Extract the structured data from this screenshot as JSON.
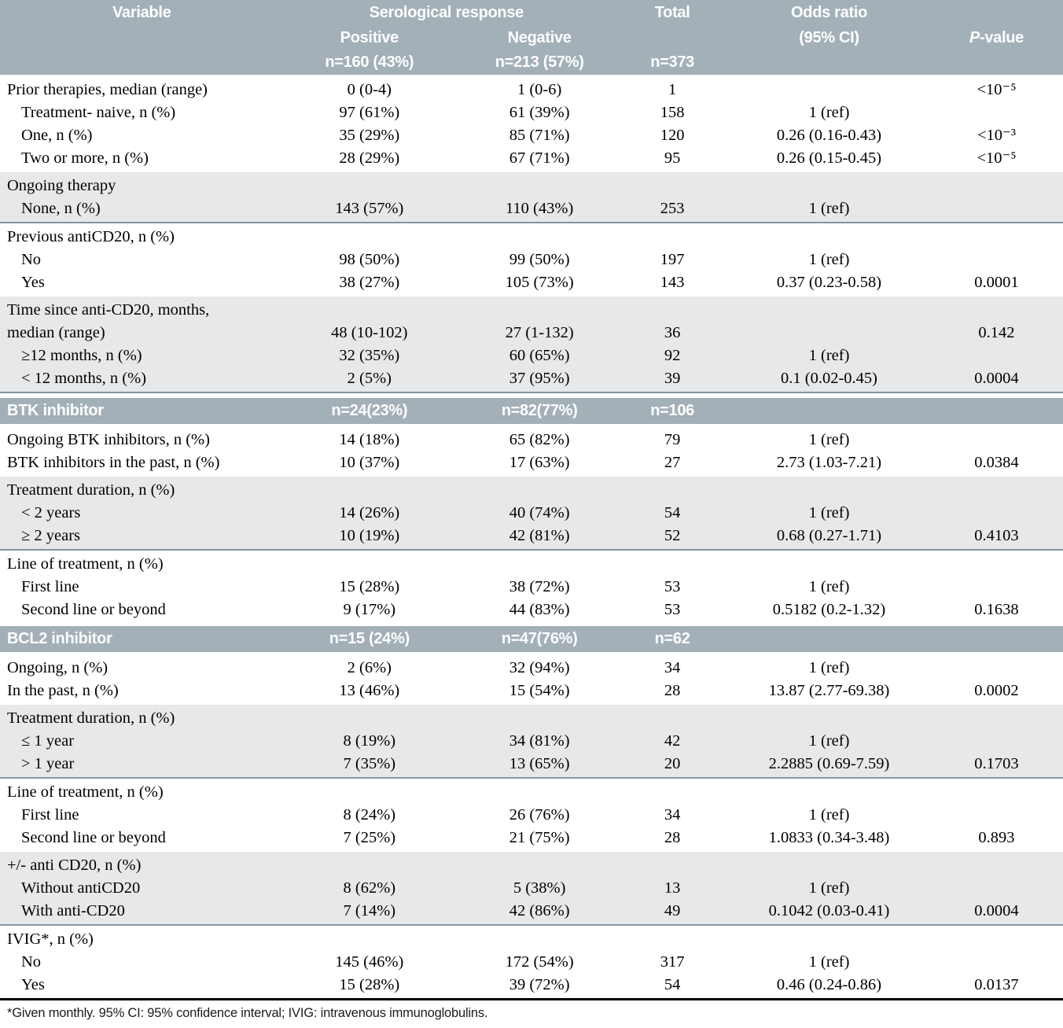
{
  "colors": {
    "header_bg": "#a3b0b8",
    "shaded_row_bg": "#e6e8ea",
    "section_divider": "#8296a2",
    "table_end_border": "#000000",
    "header_text": "#ffffff",
    "body_text": "#000000"
  },
  "header": {
    "variable": "Variable",
    "serological_response": "Serological response",
    "positive": "Positive",
    "positive_n": "n=160 (43%)",
    "negative": "Negative",
    "negative_n": "n=213 (57%)",
    "total": "Total",
    "total_n": "n=373",
    "odds_ratio_line1": "Odds ratio",
    "odds_ratio_line2": "(95% CI)",
    "p_value_italic": "P",
    "p_value_rest": "-value"
  },
  "sections": [
    {
      "type": "rows",
      "shaded": false,
      "rows": [
        {
          "label": "Prior therapies, median (range)",
          "indent": 0,
          "cells": [
            "0 (0-4)",
            "1 (0-6)",
            "1",
            "",
            "<10⁻⁵"
          ]
        },
        {
          "label": "Treatment- naive, n (%)",
          "indent": 1,
          "cells": [
            "97 (61%)",
            "61 (39%)",
            "158",
            "1 (ref)",
            ""
          ]
        },
        {
          "label": "One, n (%)",
          "indent": 1,
          "cells": [
            "35 (29%)",
            "85 (71%)",
            "120",
            "0.26 (0.16-0.43)",
            "<10⁻³"
          ]
        },
        {
          "label": "Two or more, n (%)",
          "indent": 1,
          "cells": [
            "28 (29%)",
            "67 (71%)",
            "95",
            "0.26 (0.15-0.45)",
            "<10⁻⁵"
          ]
        }
      ]
    },
    {
      "type": "rows",
      "shaded": true,
      "rows": [
        {
          "label": "Ongoing therapy",
          "indent": 0,
          "cells": [
            "",
            "",
            "",
            "",
            ""
          ]
        },
        {
          "label": "None, n (%)",
          "indent": 1,
          "cells": [
            "143 (57%)",
            "110 (43%)",
            "253",
            "1 (ref)",
            ""
          ]
        }
      ]
    },
    {
      "type": "rows",
      "shaded": false,
      "rows": [
        {
          "label": "Previous antiCD20, n (%)",
          "indent": 0,
          "cells": [
            "",
            "",
            "",
            "",
            ""
          ]
        },
        {
          "label": "No",
          "indent": 1,
          "cells": [
            "98 (50%)",
            "99 (50%)",
            "197",
            "1 (ref)",
            ""
          ]
        },
        {
          "label": "Yes",
          "indent": 1,
          "cells": [
            "38 (27%)",
            "105 (73%)",
            "143",
            "0.37 (0.23-0.58)",
            "0.0001"
          ]
        }
      ]
    },
    {
      "type": "rows",
      "shaded": true,
      "rows": [
        {
          "label": "Time since anti-CD20, months,",
          "indent": 0,
          "cells": [
            "",
            "",
            "",
            "",
            ""
          ]
        },
        {
          "label": "median (range)",
          "indent": 0,
          "cells": [
            "48 (10-102)",
            "27 (1-132)",
            "36",
            "",
            "0.142"
          ]
        },
        {
          "label": "≥12 months, n (%)",
          "indent": 1,
          "cells": [
            "32 (35%)",
            "60 (65%)",
            "92",
            "1 (ref)",
            ""
          ]
        },
        {
          "label": "< 12 months, n (%)",
          "indent": 1,
          "cells": [
            "2 (5%)",
            "37 (95%)",
            "39",
            "0.1 (0.02-0.45)",
            "0.0004"
          ]
        }
      ]
    },
    {
      "type": "band",
      "label": "BTK inhibitor",
      "cells": [
        "n=24(23%)",
        "n=82(77%)",
        "n=106"
      ]
    },
    {
      "type": "rows",
      "shaded": false,
      "rows": [
        {
          "label": "Ongoing BTK inhibitors, n (%)",
          "indent": 0,
          "cells": [
            "14 (18%)",
            "65 (82%)",
            "79",
            "1 (ref)",
            ""
          ]
        },
        {
          "label": "BTK inhibitors in the past, n (%)",
          "indent": 0,
          "cells": [
            "10 (37%)",
            "17 (63%)",
            "27",
            "2.73 (1.03-7.21)",
            "0.0384"
          ]
        }
      ]
    },
    {
      "type": "rows",
      "shaded": true,
      "rows": [
        {
          "label": "Treatment duration, n (%)",
          "indent": 0,
          "cells": [
            "",
            "",
            "",
            "",
            ""
          ]
        },
        {
          "label": "< 2 years",
          "indent": 1,
          "cells": [
            "14 (26%)",
            "40 (74%)",
            "54",
            "1 (ref)",
            ""
          ]
        },
        {
          "label": "≥ 2 years",
          "indent": 1,
          "cells": [
            "10 (19%)",
            "42 (81%)",
            "52",
            "0.68 (0.27-1.71)",
            "0.4103"
          ]
        }
      ]
    },
    {
      "type": "rows",
      "shaded": false,
      "rows": [
        {
          "label": "Line of treatment, n (%)",
          "indent": 0,
          "cells": [
            "",
            "",
            "",
            "",
            ""
          ]
        },
        {
          "label": "First line",
          "indent": 1,
          "cells": [
            "15 (28%)",
            "38 (72%)",
            "53",
            "1 (ref)",
            ""
          ]
        },
        {
          "label": "Second line or beyond",
          "indent": 1,
          "cells": [
            "9 (17%)",
            "44 (83%)",
            "53",
            "0.5182 (0.2-1.32)",
            "0.1638"
          ]
        }
      ]
    },
    {
      "type": "band",
      "label": "BCL2 inhibitor",
      "cells": [
        "n=15 (24%)",
        "n=47(76%)",
        "n=62"
      ]
    },
    {
      "type": "rows",
      "shaded": false,
      "rows": [
        {
          "label": "Ongoing, n (%)",
          "indent": 0,
          "cells": [
            "2 (6%)",
            "32 (94%)",
            "34",
            "1 (ref)",
            ""
          ]
        },
        {
          "label": "In the past, n (%)",
          "indent": 0,
          "cells": [
            "13 (46%)",
            "15 (54%)",
            "28",
            "13.87 (2.77-69.38)",
            "0.0002"
          ]
        }
      ]
    },
    {
      "type": "rows",
      "shaded": true,
      "rows": [
        {
          "label": "Treatment duration, n (%)",
          "indent": 0,
          "cells": [
            "",
            "",
            "",
            "",
            ""
          ]
        },
        {
          "label": "≤ 1 year",
          "indent": 1,
          "cells": [
            "8 (19%)",
            "34 (81%)",
            "42",
            "1 (ref)",
            ""
          ]
        },
        {
          "label": "> 1 year",
          "indent": 1,
          "cells": [
            "7 (35%)",
            "13 (65%)",
            "20",
            "2.2885 (0.69-7.59)",
            "0.1703"
          ]
        }
      ]
    },
    {
      "type": "rows",
      "shaded": false,
      "rows": [
        {
          "label": "Line of treatment, n (%)",
          "indent": 0,
          "cells": [
            "",
            "",
            "",
            "",
            ""
          ]
        },
        {
          "label": "First line",
          "indent": 1,
          "cells": [
            "8 (24%)",
            "26 (76%)",
            "34",
            "1 (ref)",
            ""
          ]
        },
        {
          "label": "Second line or beyond",
          "indent": 1,
          "cells": [
            "7 (25%)",
            "21 (75%)",
            "28",
            "1.0833 (0.34-3.48)",
            "0.893"
          ]
        }
      ]
    },
    {
      "type": "rows",
      "shaded": true,
      "rows": [
        {
          "label": "+/- anti CD20, n (%)",
          "indent": 0,
          "cells": [
            "",
            "",
            "",
            "",
            ""
          ]
        },
        {
          "label": "Without antiCD20",
          "indent": 1,
          "cells": [
            "8 (62%)",
            "5 (38%)",
            "13",
            "1 (ref)",
            ""
          ]
        },
        {
          "label": "With anti-CD20",
          "indent": 1,
          "cells": [
            "7 (14%)",
            "42 (86%)",
            "49",
            "0.1042 (0.03-0.41)",
            "0.0004"
          ]
        }
      ]
    },
    {
      "type": "rows",
      "shaded": false,
      "end": true,
      "rows": [
        {
          "label": "IVIG*, n (%)",
          "indent": 0,
          "cells": [
            "",
            "",
            "",
            "",
            ""
          ]
        },
        {
          "label": "No",
          "indent": 1,
          "cells": [
            "145 (46%)",
            "172 (54%)",
            "317",
            "1 (ref)",
            ""
          ]
        },
        {
          "label": "Yes",
          "indent": 1,
          "cells": [
            "15 (28%)",
            "39 (72%)",
            "54",
            "0.46 (0.24-0.86)",
            "0.0137"
          ]
        }
      ]
    }
  ],
  "footnote": "*Given monthly. 95% CI: 95% confidence interval; IVIG: intravenous immunoglobulins."
}
